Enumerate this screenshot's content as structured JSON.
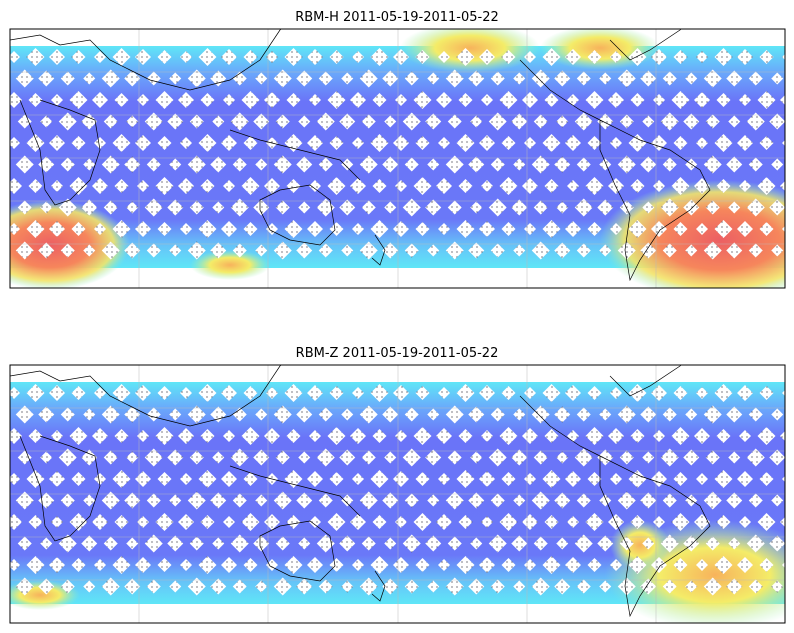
{
  "panels": [
    {
      "title": "RBM-H 2011-05-19-2011-05-22"
    },
    {
      "title": "RBM-Z 2011-05-19-2011-05-22"
    }
  ]
}
